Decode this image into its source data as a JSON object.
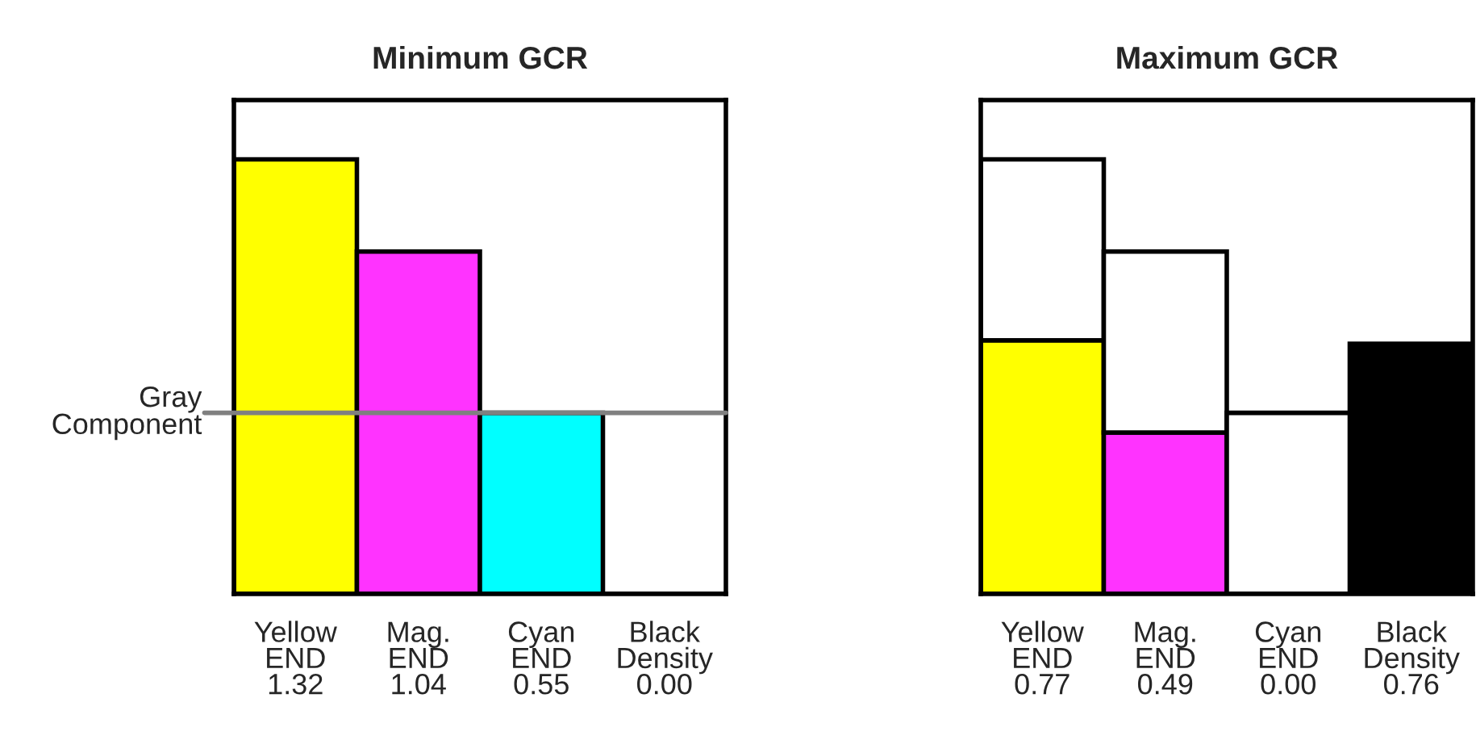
{
  "chart_data": [
    {
      "type": "bar",
      "title": "Minimum GCR",
      "categories": [
        "Yellow\nEND",
        "Mag.\nEND",
        "Cyan\nEND",
        "Black\nDensity"
      ],
      "ylim": [
        0,
        1.5
      ],
      "tick_labels": "x",
      "grid": false,
      "series": [
        {
          "colors": [
            "#ffff00",
            "#ff33ff",
            "#00ffff",
            "#ffffff"
          ],
          "values": [
            1.32,
            1.04,
            0.55,
            0.0
          ],
          "value_labels": [
            "1.32",
            "1.04",
            "0.55",
            "0.00"
          ]
        }
      ],
      "ref_lines": [
        {
          "axis": "y",
          "value": 0.55,
          "label": "Gray\nComponent",
          "color": "#808080"
        }
      ]
    },
    {
      "type": "bar",
      "title": "Maximum GCR",
      "categories": [
        "Yellow\nEND",
        "Mag.\nEND",
        "Cyan\nEND",
        "Black\nDensity"
      ],
      "ylim": [
        0,
        1.5
      ],
      "tick_labels": "x",
      "grid": false,
      "stacked": true,
      "series": [
        {
          "colors": [
            "#ffff00",
            "#ff33ff",
            "#ffffff",
            "#000000"
          ],
          "values": [
            0.77,
            0.49,
            0.0,
            0.76
          ],
          "value_labels": [
            "0.77",
            "0.49",
            "0.00",
            "0.76"
          ]
        },
        {
          "colors": [
            "#ffffff",
            "#ffffff",
            "#ffffff",
            "#ffffff"
          ],
          "values": [
            0.55,
            0.55,
            0.55,
            null
          ]
        }
      ]
    }
  ]
}
